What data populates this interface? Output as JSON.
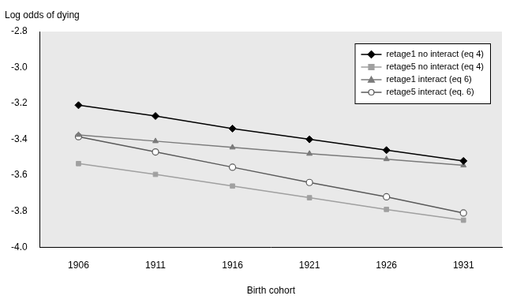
{
  "chart_data": {
    "type": "line",
    "y_label": "Log odds of dying",
    "x_label": "Birth cohort",
    "categories": [
      "1906",
      "1911",
      "1916",
      "1921",
      "1926",
      "1931"
    ],
    "ylim": [
      -4.0,
      -2.8
    ],
    "yticks": [
      {
        "value": -4,
        "label": "-4.0"
      },
      -3.8,
      -3.6,
      -3.4,
      -3.2,
      {
        "value": -3,
        "label": "-3.0"
      },
      -2.8
    ],
    "grid": false,
    "legend": "upper right",
    "series": [
      {
        "name": "retage1 no interact (eq 4)",
        "color": "#000000",
        "marker": "diamond",
        "values": [
          -3.21,
          -3.27,
          -3.34,
          -3.4,
          -3.46,
          -3.52
        ]
      },
      {
        "name": "retage5 no interact (eq 4)",
        "color": "#a0a0a0",
        "marker": "square",
        "values": [
          -3.535,
          -3.595,
          -3.66,
          -3.725,
          -3.79,
          -3.85
        ]
      },
      {
        "name": "retage1 interact (eq 6)",
        "color": "#7a7a7a",
        "marker": "triangle",
        "values": [
          -3.375,
          -3.41,
          -3.445,
          -3.48,
          -3.51,
          -3.545
        ]
      },
      {
        "name": "retage5 interact (eq. 6)",
        "color": "#5a5a5a",
        "marker": "open_circle",
        "values": [
          -3.385,
          -3.47,
          -3.555,
          -3.64,
          -3.72,
          -3.81
        ]
      }
    ]
  }
}
